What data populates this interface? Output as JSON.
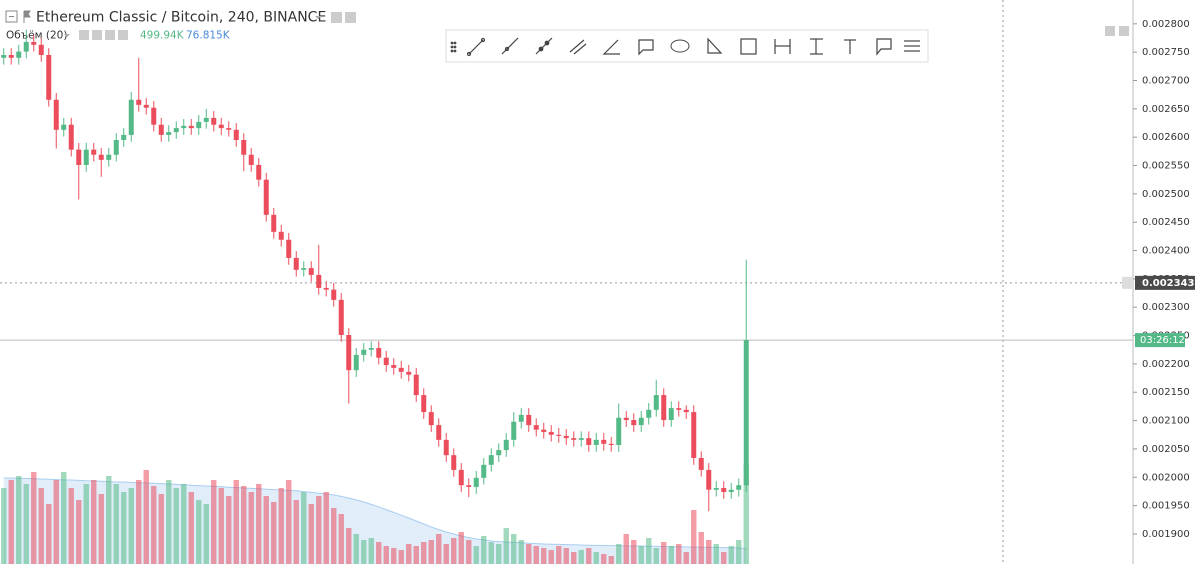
{
  "chart_data": {
    "type": "candlestick",
    "title": "Ethereum Classic / Bitcoin, 240, BINANCE",
    "indicator_name": "Объём (20)",
    "volume_label": "499.94K",
    "volume_ma_label": "76.815K",
    "up_color": "#53b987",
    "down_color": "#eb4d5c",
    "ma_color": "#a9cdf0",
    "ylim": [
      0.001847,
      0.002842
    ],
    "yticks": [
      {
        "value": 0.0019,
        "label": "0.001900"
      },
      {
        "value": 0.00195,
        "label": "0.001950"
      },
      {
        "value": 0.002,
        "label": "0.002000"
      },
      {
        "value": 0.00205,
        "label": "0.002050"
      },
      {
        "value": 0.0021,
        "label": "0.002100"
      },
      {
        "value": 0.00215,
        "label": "0.002150"
      },
      {
        "value": 0.0022,
        "label": "0.002200"
      },
      {
        "value": 0.00225,
        "label": "0.002250"
      },
      {
        "value": 0.0023,
        "label": "0.002300"
      },
      {
        "value": 0.00235,
        "label": "0.002350"
      },
      {
        "value": 0.0024,
        "label": "0.002400"
      },
      {
        "value": 0.00245,
        "label": "0.002450"
      },
      {
        "value": 0.0025,
        "label": "0.002500"
      },
      {
        "value": 0.00255,
        "label": "0.002550"
      },
      {
        "value": 0.0026,
        "label": "0.002600"
      },
      {
        "value": 0.00265,
        "label": "0.002650"
      },
      {
        "value": 0.0027,
        "label": "0.002700"
      },
      {
        "value": 0.00275,
        "label": "0.002750"
      },
      {
        "value": 0.0028,
        "label": "0.002800"
      }
    ],
    "crosshair_price": {
      "value": 0.002343,
      "label": "0.002343"
    },
    "countdown": "03:26:12",
    "volume_lim": [
      0,
      2820
    ],
    "open": [
      0.00274,
      0.002745,
      0.00274,
      0.002751,
      0.002768,
      0.002763,
      0.002745,
      0.002666,
      0.002613,
      0.002622,
      0.002578,
      0.002551,
      0.002578,
      0.002569,
      0.00256,
      0.002569,
      0.002595,
      0.002604,
      0.002666,
      0.002657,
      0.002652,
      0.002622,
      0.002604,
      0.002609,
      0.002616,
      0.00262,
      0.002616,
      0.002627,
      0.002634,
      0.002622,
      0.002616,
      0.002613,
      0.002595,
      0.002569,
      0.002551,
      0.002525,
      0.002463,
      0.002433,
      0.002419,
      0.002387,
      0.002366,
      0.002369,
      0.002357,
      0.002334,
      0.002331,
      0.002313,
      0.002251,
      0.002189,
      0.002216,
      0.002225,
      0.002228,
      0.002211,
      0.002198,
      0.002193,
      0.002186,
      0.002181,
      0.002145,
      0.002115,
      0.002092,
      0.002066,
      0.002039,
      0.002013,
      0.001986,
      0.001983,
      0.001999,
      0.002022,
      0.002039,
      0.002048,
      0.002066,
      0.002098,
      0.00211,
      0.002092,
      0.002084,
      0.00208,
      0.002075,
      0.002073,
      0.002069,
      0.002066,
      0.002069,
      0.002057,
      0.002066,
      0.002059,
      0.002057,
      0.002105,
      0.002101,
      0.002092,
      0.002105,
      0.002119,
      0.002145,
      0.002101,
      0.002122,
      0.002119,
      0.002115,
      0.002034,
      0.002013,
      0.001978,
      0.001981,
      0.001974,
      0.001978,
      0.001986
    ],
    "high": [
      0.002757,
      0.002757,
      0.002763,
      0.00279,
      0.00278,
      0.002775,
      0.002757,
      0.002678,
      0.002634,
      0.002634,
      0.00259,
      0.00259,
      0.00259,
      0.002581,
      0.002581,
      0.002607,
      0.002616,
      0.00268,
      0.00274,
      0.002669,
      0.002664,
      0.002634,
      0.002621,
      0.002628,
      0.002632,
      0.002632,
      0.002639,
      0.00265,
      0.002646,
      0.002634,
      0.002628,
      0.002625,
      0.002607,
      0.002581,
      0.002563,
      0.002537,
      0.002475,
      0.002445,
      0.002431,
      0.002399,
      0.002381,
      0.002381,
      0.00241,
      0.002346,
      0.002343,
      0.002325,
      0.002263,
      0.002228,
      0.002237,
      0.00224,
      0.00224,
      0.002223,
      0.00221,
      0.002205,
      0.002198,
      0.002193,
      0.002157,
      0.002127,
      0.002104,
      0.002078,
      0.002051,
      0.002025,
      0.001998,
      0.002011,
      0.002034,
      0.002051,
      0.00206,
      0.002078,
      0.002115,
      0.002122,
      0.002122,
      0.002104,
      0.002096,
      0.002092,
      0.002087,
      0.002085,
      0.002081,
      0.002081,
      0.002081,
      0.002078,
      0.002078,
      0.002071,
      0.00213,
      0.002117,
      0.002113,
      0.002117,
      0.002131,
      0.002172,
      0.002157,
      0.002134,
      0.002134,
      0.002127,
      0.002127,
      0.002046,
      0.002025,
      0.001993,
      0.001993,
      0.00199,
      0.001998,
      0.002384
    ],
    "low": [
      0.002728,
      0.002728,
      0.002728,
      0.002739,
      0.002751,
      0.002733,
      0.002654,
      0.00258,
      0.002601,
      0.002566,
      0.00249,
      0.002539,
      0.002557,
      0.00253,
      0.002548,
      0.002557,
      0.002583,
      0.002592,
      0.002645,
      0.00264,
      0.00261,
      0.002592,
      0.002592,
      0.002597,
      0.002604,
      0.002604,
      0.002604,
      0.002615,
      0.00261,
      0.002604,
      0.002601,
      0.002583,
      0.00254,
      0.002539,
      0.002513,
      0.002451,
      0.002421,
      0.002407,
      0.002375,
      0.002354,
      0.002354,
      0.002345,
      0.002322,
      0.002319,
      0.002301,
      0.002239,
      0.00213,
      0.002177,
      0.002204,
      0.002213,
      0.002199,
      0.002186,
      0.002181,
      0.002174,
      0.002169,
      0.002133,
      0.002103,
      0.00208,
      0.002054,
      0.002027,
      0.002001,
      0.001974,
      0.001965,
      0.001971,
      0.001987,
      0.00201,
      0.002027,
      0.002036,
      0.002054,
      0.002086,
      0.00208,
      0.002072,
      0.002068,
      0.002063,
      0.002061,
      0.002057,
      0.002054,
      0.002054,
      0.002045,
      0.002045,
      0.002047,
      0.002045,
      0.002045,
      0.002089,
      0.00208,
      0.00208,
      0.002093,
      0.002107,
      0.002089,
      0.002089,
      0.002107,
      0.002103,
      0.002022,
      0.002001,
      0.00194,
      0.001966,
      0.001962,
      0.001962,
      0.001966,
      0.001974
    ],
    "close": [
      0.002745,
      0.00274,
      0.002751,
      0.002768,
      0.002763,
      0.002745,
      0.002666,
      0.002613,
      0.002622,
      0.002578,
      0.002551,
      0.002578,
      0.002569,
      0.00256,
      0.002569,
      0.002595,
      0.002604,
      0.002666,
      0.002657,
      0.002652,
      0.002622,
      0.002604,
      0.002609,
      0.002616,
      0.00262,
      0.002616,
      0.002627,
      0.002634,
      0.002622,
      0.002616,
      0.002613,
      0.002595,
      0.002569,
      0.002551,
      0.002525,
      0.002463,
      0.002433,
      0.002419,
      0.002387,
      0.002366,
      0.002369,
      0.002357,
      0.002334,
      0.002331,
      0.002313,
      0.002251,
      0.002189,
      0.002216,
      0.002225,
      0.002228,
      0.002211,
      0.002198,
      0.002193,
      0.002186,
      0.002181,
      0.002145,
      0.002115,
      0.002092,
      0.002066,
      0.002039,
      0.002013,
      0.001986,
      0.001983,
      0.001999,
      0.002022,
      0.002039,
      0.002048,
      0.002066,
      0.002098,
      0.00211,
      0.002092,
      0.002084,
      0.00208,
      0.002075,
      0.002073,
      0.002069,
      0.002066,
      0.002069,
      0.002057,
      0.002066,
      0.002059,
      0.002057,
      0.002105,
      0.002101,
      0.002092,
      0.002105,
      0.002119,
      0.002145,
      0.002101,
      0.002122,
      0.002119,
      0.002115,
      0.002034,
      0.002013,
      0.001978,
      0.001981,
      0.001974,
      0.001978,
      0.001986,
      0.002242
    ],
    "volume": [
      380,
      420,
      440,
      400,
      460,
      380,
      300,
      420,
      460,
      380,
      320,
      400,
      420,
      350,
      440,
      400,
      360,
      380,
      420,
      470,
      390,
      350,
      420,
      380,
      400,
      360,
      320,
      300,
      420,
      380,
      340,
      420,
      390,
      360,
      400,
      340,
      310,
      380,
      420,
      320,
      360,
      300,
      340,
      360,
      280,
      250,
      180,
      150,
      120,
      130,
      110,
      90,
      80,
      70,
      100,
      90,
      110,
      120,
      150,
      100,
      130,
      160,
      120,
      90,
      140,
      110,
      100,
      180,
      150,
      120,
      100,
      90,
      80,
      70,
      90,
      80,
      60,
      70,
      80,
      60,
      50,
      40,
      100,
      150,
      120,
      90,
      130,
      80,
      110,
      90,
      100,
      60,
      270,
      160,
      120,
      100,
      60,
      90,
      120,
      499.94
    ],
    "volume_ma": [
      430,
      430,
      428,
      428,
      426,
      425,
      424,
      422,
      420,
      420,
      418,
      416,
      415,
      414,
      412,
      410,
      410,
      408,
      406,
      405,
      404,
      402,
      400,
      398,
      396,
      394,
      392,
      390,
      388,
      386,
      384,
      382,
      380,
      378,
      376,
      374,
      372,
      370,
      368,
      366,
      362,
      358,
      354,
      350,
      345,
      338,
      330,
      320,
      310,
      298,
      286,
      272,
      258,
      244,
      230,
      215,
      200,
      185,
      172,
      160,
      150,
      140,
      132,
      125,
      120,
      115,
      112,
      110,
      108,
      106,
      104,
      102,
      100,
      99,
      98,
      97,
      96,
      95,
      94,
      93,
      92,
      92,
      91,
      90,
      90,
      90,
      89,
      88,
      87,
      86,
      86,
      85,
      85,
      84,
      84,
      83,
      82,
      81,
      80,
      76.815
    ]
  }
}
